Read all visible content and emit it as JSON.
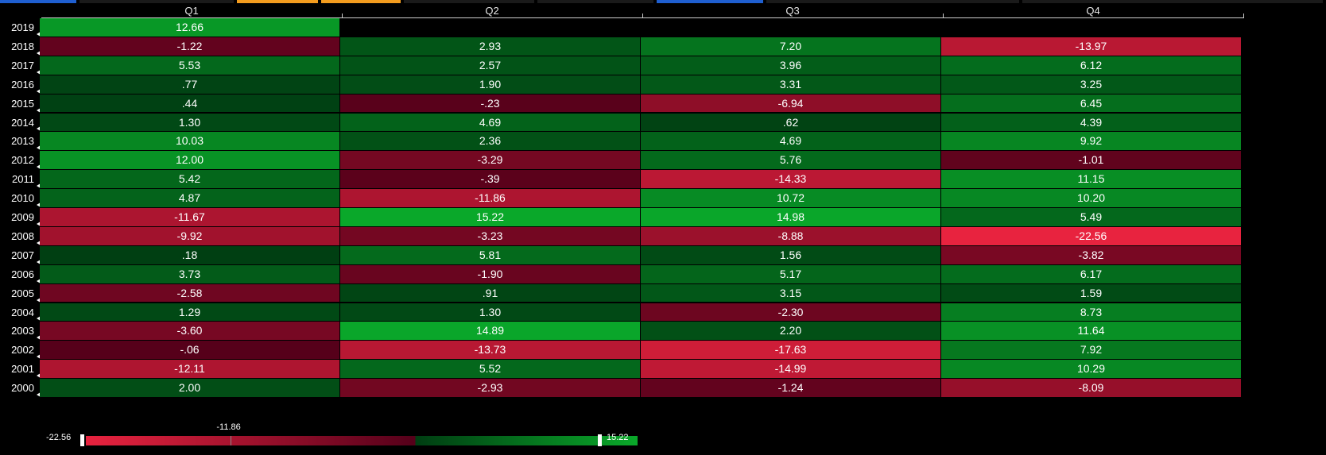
{
  "chart_data": {
    "type": "heatmap",
    "title": "",
    "columns": [
      "Q1",
      "Q2",
      "Q3",
      "Q4"
    ],
    "rows": [
      "2019",
      "2018",
      "2017",
      "2016",
      "2015",
      "2014",
      "2013",
      "2012",
      "2011",
      "2010",
      "2009",
      "2008",
      "2007",
      "2006",
      "2005",
      "2004",
      "2003",
      "2002",
      "2001",
      "2000"
    ],
    "values": [
      [
        12.66,
        null,
        null,
        null
      ],
      [
        -1.22,
        2.93,
        7.2,
        -13.97
      ],
      [
        5.53,
        2.57,
        3.96,
        6.12
      ],
      [
        0.77,
        1.9,
        3.31,
        3.25
      ],
      [
        0.44,
        -0.23,
        -6.94,
        6.45
      ],
      [
        1.3,
        4.69,
        0.62,
        4.39
      ],
      [
        10.03,
        2.36,
        4.69,
        9.92
      ],
      [
        12.0,
        -3.29,
        5.76,
        -1.01
      ],
      [
        5.42,
        -0.39,
        -14.33,
        11.15
      ],
      [
        4.87,
        -11.86,
        10.72,
        10.2
      ],
      [
        -11.67,
        15.22,
        14.98,
        5.49
      ],
      [
        -9.92,
        -3.23,
        -8.88,
        -22.56
      ],
      [
        0.18,
        5.81,
        1.56,
        -3.82
      ],
      [
        3.73,
        -1.9,
        5.17,
        6.17
      ],
      [
        -2.58,
        0.91,
        3.15,
        1.59
      ],
      [
        1.29,
        1.3,
        -2.3,
        8.73
      ],
      [
        -3.6,
        14.89,
        2.2,
        11.64
      ],
      [
        -0.06,
        -13.73,
        -17.63,
        7.92
      ],
      [
        -12.11,
        5.52,
        -14.99,
        10.29
      ],
      [
        2.0,
        -2.93,
        -1.24,
        -8.09
      ]
    ],
    "labels": [
      [
        "12.66",
        "",
        "",
        ""
      ],
      [
        "-1.22",
        "2.93",
        "7.20",
        "-13.97"
      ],
      [
        "5.53",
        "2.57",
        "3.96",
        "6.12"
      ],
      [
        ".77",
        "1.90",
        "3.31",
        "3.25"
      ],
      [
        ".44",
        "-.23",
        "-6.94",
        "6.45"
      ],
      [
        "1.30",
        "4.69",
        ".62",
        "4.39"
      ],
      [
        "10.03",
        "2.36",
        "4.69",
        "9.92"
      ],
      [
        "12.00",
        "-3.29",
        "5.76",
        "-1.01"
      ],
      [
        "5.42",
        "-.39",
        "-14.33",
        "11.15"
      ],
      [
        "4.87",
        "-11.86",
        "10.72",
        "10.20"
      ],
      [
        "-11.67",
        "15.22",
        "14.98",
        "5.49"
      ],
      [
        "-9.92",
        "-3.23",
        "-8.88",
        "-22.56"
      ],
      [
        ".18",
        "5.81",
        "1.56",
        "-3.82"
      ],
      [
        "3.73",
        "-1.90",
        "5.17",
        "6.17"
      ],
      [
        "-2.58",
        ".91",
        "3.15",
        "1.59"
      ],
      [
        "1.29",
        "1.30",
        "-2.30",
        "8.73"
      ],
      [
        "-3.60",
        "14.89",
        "2.20",
        "11.64"
      ],
      [
        "-.06",
        "-13.73",
        "-17.63",
        "7.92"
      ],
      [
        "-12.11",
        "5.52",
        "-14.99",
        "10.29"
      ],
      [
        "2.00",
        "-2.93",
        "-1.24",
        "-8.09"
      ]
    ],
    "scale": {
      "min": -22.56,
      "max": 15.22,
      "min_label": "-22.56",
      "max_label": "15.22",
      "marker_value": -11.86,
      "marker_label": "-11.86",
      "neg_strong": "#e8233f",
      "neg_weak": "#55001a",
      "pos_weak": "#003d12",
      "pos_strong": "#0aa82a"
    },
    "legend_position": "bottom-left",
    "grid": true
  },
  "top_tab_colors": [
    "#1f5fd0",
    "#1a1a1a",
    "#f39c1e",
    "#f39c1e",
    "#1a1a1a",
    "#1a1a1a",
    "#1f5fd0",
    "#1a1a1a",
    "#1a1a1a"
  ]
}
